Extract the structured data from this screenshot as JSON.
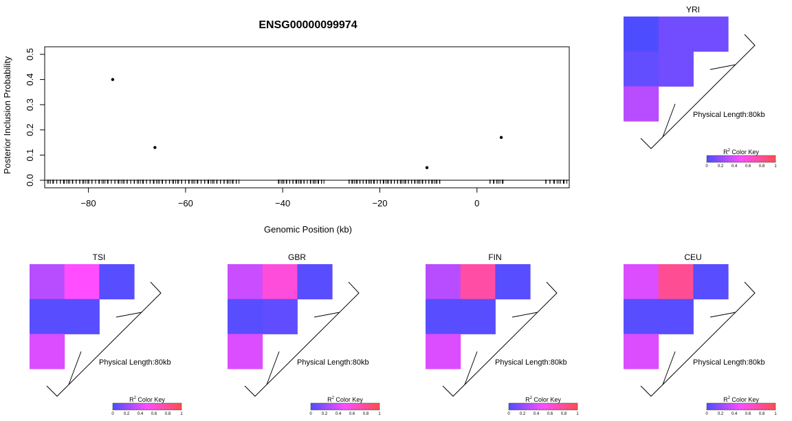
{
  "chart_data": [
    {
      "type": "scatter",
      "title": "ENSG00000099974",
      "xlabel": "Genomic Position (kb)",
      "ylabel": "Posterior Inclusion Probability",
      "xlim": [
        -89,
        19
      ],
      "ylim": [
        -0.03,
        0.53
      ],
      "x_ticks": [
        -80,
        -60,
        -40,
        -20,
        0
      ],
      "x_tick_labels": [
        "−80",
        "−60",
        "−40",
        "−20",
        "0"
      ],
      "y_ticks": [
        0.0,
        0.1,
        0.2,
        0.3,
        0.4,
        0.5
      ],
      "y_tick_labels": [
        "0.0",
        "0.1",
        "0.2",
        "0.3",
        "0.4",
        "0.5"
      ],
      "grid": false,
      "points": [
        {
          "x": -75.0,
          "y": 0.4
        },
        {
          "x": -66.3,
          "y": 0.13
        },
        {
          "x": -10.3,
          "y": 0.05
        },
        {
          "x": 5.0,
          "y": 0.17
        }
      ],
      "rug_segments": [
        {
          "from": -88.5,
          "to": -49.0,
          "ticks": 110
        },
        {
          "from": -41.0,
          "to": -31.5,
          "ticks": 30
        },
        {
          "from": -26.5,
          "to": -7.5,
          "ticks": 60
        },
        {
          "from": 2.5,
          "to": 5.5,
          "ticks": 9
        },
        {
          "from": 14.0,
          "to": 18.5,
          "ticks": 12
        }
      ],
      "reference_line_y": 0
    },
    {
      "type": "heatmap",
      "population": "YRI",
      "physical_length_label": "Physical Length:80kb",
      "cells": [
        {
          "row": 0,
          "col": 0,
          "r2": 0.0
        },
        {
          "row": 0,
          "col": 1,
          "r2": 0.1
        },
        {
          "row": 0,
          "col": 2,
          "r2": 0.1
        },
        {
          "row": 1,
          "col": 0,
          "r2": 0.06
        },
        {
          "row": 1,
          "col": 1,
          "r2": 0.1
        },
        {
          "row": 2,
          "col": 0,
          "r2": 0.3
        }
      ]
    },
    {
      "type": "heatmap",
      "population": "TSI",
      "physical_length_label": "Physical Length:80kb",
      "cells": [
        {
          "row": 0,
          "col": 0,
          "r2": 0.3
        },
        {
          "row": 0,
          "col": 1,
          "r2": 0.5
        },
        {
          "row": 0,
          "col": 2,
          "r2": 0.03
        },
        {
          "row": 1,
          "col": 0,
          "r2": 0.03
        },
        {
          "row": 1,
          "col": 1,
          "r2": 0.03
        },
        {
          "row": 2,
          "col": 0,
          "r2": 0.4
        }
      ]
    },
    {
      "type": "heatmap",
      "population": "GBR",
      "physical_length_label": "Physical Length:80kb",
      "cells": [
        {
          "row": 0,
          "col": 0,
          "r2": 0.35
        },
        {
          "row": 0,
          "col": 1,
          "r2": 0.6
        },
        {
          "row": 0,
          "col": 2,
          "r2": 0.03
        },
        {
          "row": 1,
          "col": 0,
          "r2": 0.03
        },
        {
          "row": 1,
          "col": 1,
          "r2": 0.05
        },
        {
          "row": 2,
          "col": 0,
          "r2": 0.4
        }
      ]
    },
    {
      "type": "heatmap",
      "population": "FIN",
      "physical_length_label": "Physical Length:80kb",
      "cells": [
        {
          "row": 0,
          "col": 0,
          "r2": 0.3
        },
        {
          "row": 0,
          "col": 1,
          "r2": 0.75
        },
        {
          "row": 0,
          "col": 2,
          "r2": 0.03
        },
        {
          "row": 1,
          "col": 0,
          "r2": 0.03
        },
        {
          "row": 1,
          "col": 1,
          "r2": 0.03
        },
        {
          "row": 2,
          "col": 0,
          "r2": 0.4
        }
      ]
    },
    {
      "type": "heatmap",
      "population": "CEU",
      "physical_length_label": "Physical Length:80kb",
      "cells": [
        {
          "row": 0,
          "col": 0,
          "r2": 0.4
        },
        {
          "row": 0,
          "col": 1,
          "r2": 0.8
        },
        {
          "row": 0,
          "col": 2,
          "r2": 0.03
        },
        {
          "row": 1,
          "col": 0,
          "r2": 0.03
        },
        {
          "row": 1,
          "col": 1,
          "r2": 0.03
        },
        {
          "row": 2,
          "col": 0,
          "r2": 0.4
        }
      ]
    }
  ],
  "color_key": {
    "title": "R",
    "title_sup": "2",
    "title_suffix": " Color Key",
    "ticks": [
      "0",
      "0.2",
      "0.4",
      "0.6",
      "0.8",
      "1"
    ],
    "gradient": [
      "#4d4dff",
      "#ff4dff",
      "#ff4d4d"
    ]
  }
}
